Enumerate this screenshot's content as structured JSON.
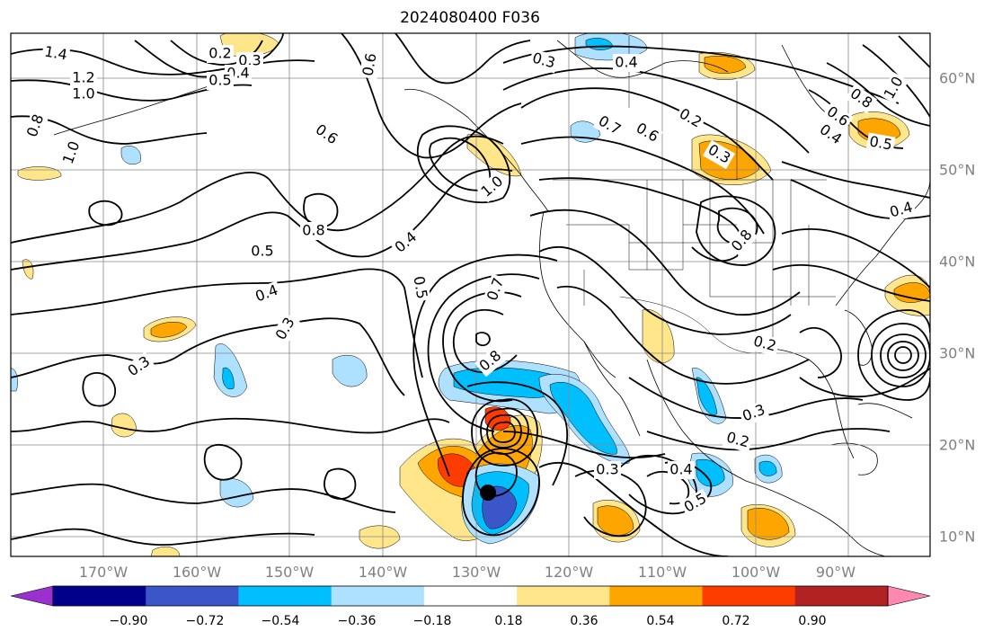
{
  "title": "2024080400 F036",
  "axes": {
    "lon_labels": [
      "170°W",
      "160°W",
      "150°W",
      "140°W",
      "130°W",
      "120°W",
      "110°W",
      "100°W",
      "90°W"
    ],
    "lat_labels": [
      "60°N",
      "50°N",
      "40°N",
      "30°N",
      "20°N",
      "10°N"
    ]
  },
  "colorbar": {
    "tick_labels": [
      "−0.90",
      "−0.72",
      "−0.54",
      "−0.36",
      "−0.18",
      "0.18",
      "0.36",
      "0.54",
      "0.72",
      "0.90"
    ],
    "bin_colors": [
      "#9b30d0",
      "#00008b",
      "#3a56c9",
      "#00bfff",
      "#aee0ff",
      "#ffffff",
      "#ffe68a",
      "#ffa500",
      "#ff3c00",
      "#b22222",
      "#ff88b0"
    ]
  },
  "contour_labels": [
    "1.4",
    "1.2",
    "1.0",
    "0.8",
    "1.0",
    "0.2",
    "0.3",
    "0.4",
    "0.5",
    "0.6",
    "0.3",
    "0.4",
    "0.7",
    "0.6",
    "0.2",
    "0.3",
    "0.4",
    "0.6",
    "0.8",
    "1.0",
    "0.5",
    "0.8",
    "0.5",
    "0.4",
    "0.3",
    "0.4",
    "0.3",
    "0.5",
    "0.7",
    "0.8",
    "0.3",
    "0.4",
    "0.5",
    "0.2",
    "0.3",
    "0.2",
    "0.4",
    "0.8",
    "0.6",
    "1.0"
  ],
  "palette": {
    "frame": "#000000",
    "grid": "#888888",
    "contour": "#000000",
    "land": "#ffffff",
    "water": "#ffffff"
  }
}
